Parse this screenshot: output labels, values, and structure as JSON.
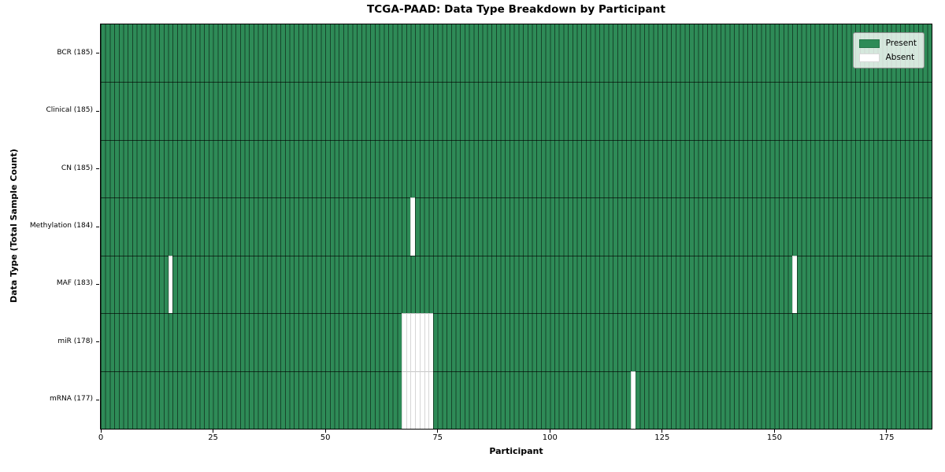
{
  "chart_data": {
    "type": "heatmap",
    "title": "TCGA-PAAD: Data Type Breakdown by Participant",
    "xlabel": "Participant",
    "ylabel": "Data Type (Total Sample Count)",
    "n_participants": 185,
    "x_axis": {
      "min": 0,
      "max": 185,
      "ticks": [
        0,
        25,
        50,
        75,
        100,
        125,
        150,
        175
      ]
    },
    "grid": "cell-edges",
    "legend_position": "upper right",
    "colors": {
      "present": "#2e8b57",
      "absent": "#ffffff"
    },
    "legend_items": [
      {
        "key": "present",
        "label": "Present"
      },
      {
        "key": "absent",
        "label": "Absent"
      }
    ],
    "rows": [
      {
        "data_type": "BCR",
        "total_samples": 185,
        "label": "BCR (185)",
        "absent_participants": []
      },
      {
        "data_type": "Clinical",
        "total_samples": 185,
        "label": "Clinical (185)",
        "absent_participants": []
      },
      {
        "data_type": "CN",
        "total_samples": 185,
        "label": "CN (185)",
        "absent_participants": []
      },
      {
        "data_type": "Methylation",
        "total_samples": 184,
        "label": "Methylation (184)",
        "absent_participants": [
          69
        ]
      },
      {
        "data_type": "MAF",
        "total_samples": 183,
        "label": "MAF (183)",
        "absent_participants": [
          15,
          154
        ]
      },
      {
        "data_type": "miR",
        "total_samples": 178,
        "label": "miR (178)",
        "absent_participants": [
          67,
          68,
          69,
          70,
          71,
          72,
          73
        ]
      },
      {
        "data_type": "mRNA",
        "total_samples": 177,
        "label": "mRNA (177)",
        "absent_participants": [
          67,
          68,
          69,
          70,
          71,
          72,
          73,
          118
        ]
      }
    ]
  }
}
